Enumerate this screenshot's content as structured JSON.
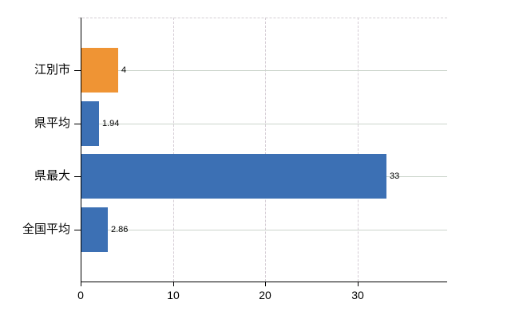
{
  "chart_data": {
    "type": "bar",
    "orientation": "horizontal",
    "title": "",
    "xlabel": "",
    "ylabel": "",
    "categories": [
      "江別市",
      "県平均",
      "県最大",
      "全国平均"
    ],
    "values": [
      4,
      1.94,
      33,
      2.86
    ],
    "value_labels": [
      "4",
      "1.94",
      "33",
      "2.86"
    ],
    "series": [
      {
        "name": "",
        "values": [
          4,
          1.94,
          33,
          2.86
        ]
      }
    ],
    "bar_colors": [
      "#ef9434",
      "#3c70b4",
      "#3c70b4",
      "#3c70b4"
    ],
    "xlim": [
      0,
      39.7
    ],
    "xticks": [
      0,
      10,
      20,
      30
    ],
    "xtick_labels": [
      "0",
      "10",
      "20",
      "30"
    ],
    "grid": true,
    "legend_position": "none",
    "colors": {
      "accent_orange": "#ef9434",
      "accent_blue": "#3c70b4",
      "axis": "#000000",
      "grid_horizontal": "#ccd5cc",
      "grid_vertical": "#d5cdd5",
      "plot_top_border": "#d3cdd3",
      "text": "#000000",
      "background": "#ffffff"
    }
  }
}
